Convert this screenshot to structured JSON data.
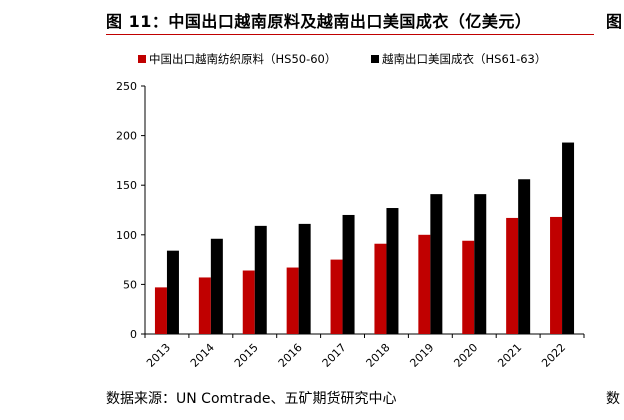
{
  "figure": {
    "title": "图 11：中国出口越南原料及越南出口美国成衣（亿美元）",
    "right_edge_title_fragment": "图",
    "source": "数据来源：UN Comtrade、五矿期货研究中心",
    "right_edge_source_fragment": "数"
  },
  "colors": {
    "series1": "#c00000",
    "series2": "#000000",
    "axis": "#000000",
    "title_rule": "#c00000"
  },
  "chart_data": {
    "type": "bar",
    "categories": [
      "2013",
      "2014",
      "2015",
      "2016",
      "2017",
      "2018",
      "2019",
      "2020",
      "2021",
      "2022"
    ],
    "series": [
      {
        "name": "中国出口越南纺织原料（HS50-60）",
        "values": [
          47,
          57,
          64,
          67,
          75,
          91,
          100,
          94,
          117,
          118
        ]
      },
      {
        "name": "越南出口美国成衣（HS61-63）",
        "values": [
          84,
          96,
          109,
          111,
          120,
          127,
          141,
          141,
          156,
          193
        ]
      }
    ],
    "y_ticks": [
      "0",
      "50",
      "100",
      "150",
      "200",
      "250"
    ],
    "ylim": [
      0,
      250
    ],
    "legend_position": "top",
    "grid": false
  }
}
